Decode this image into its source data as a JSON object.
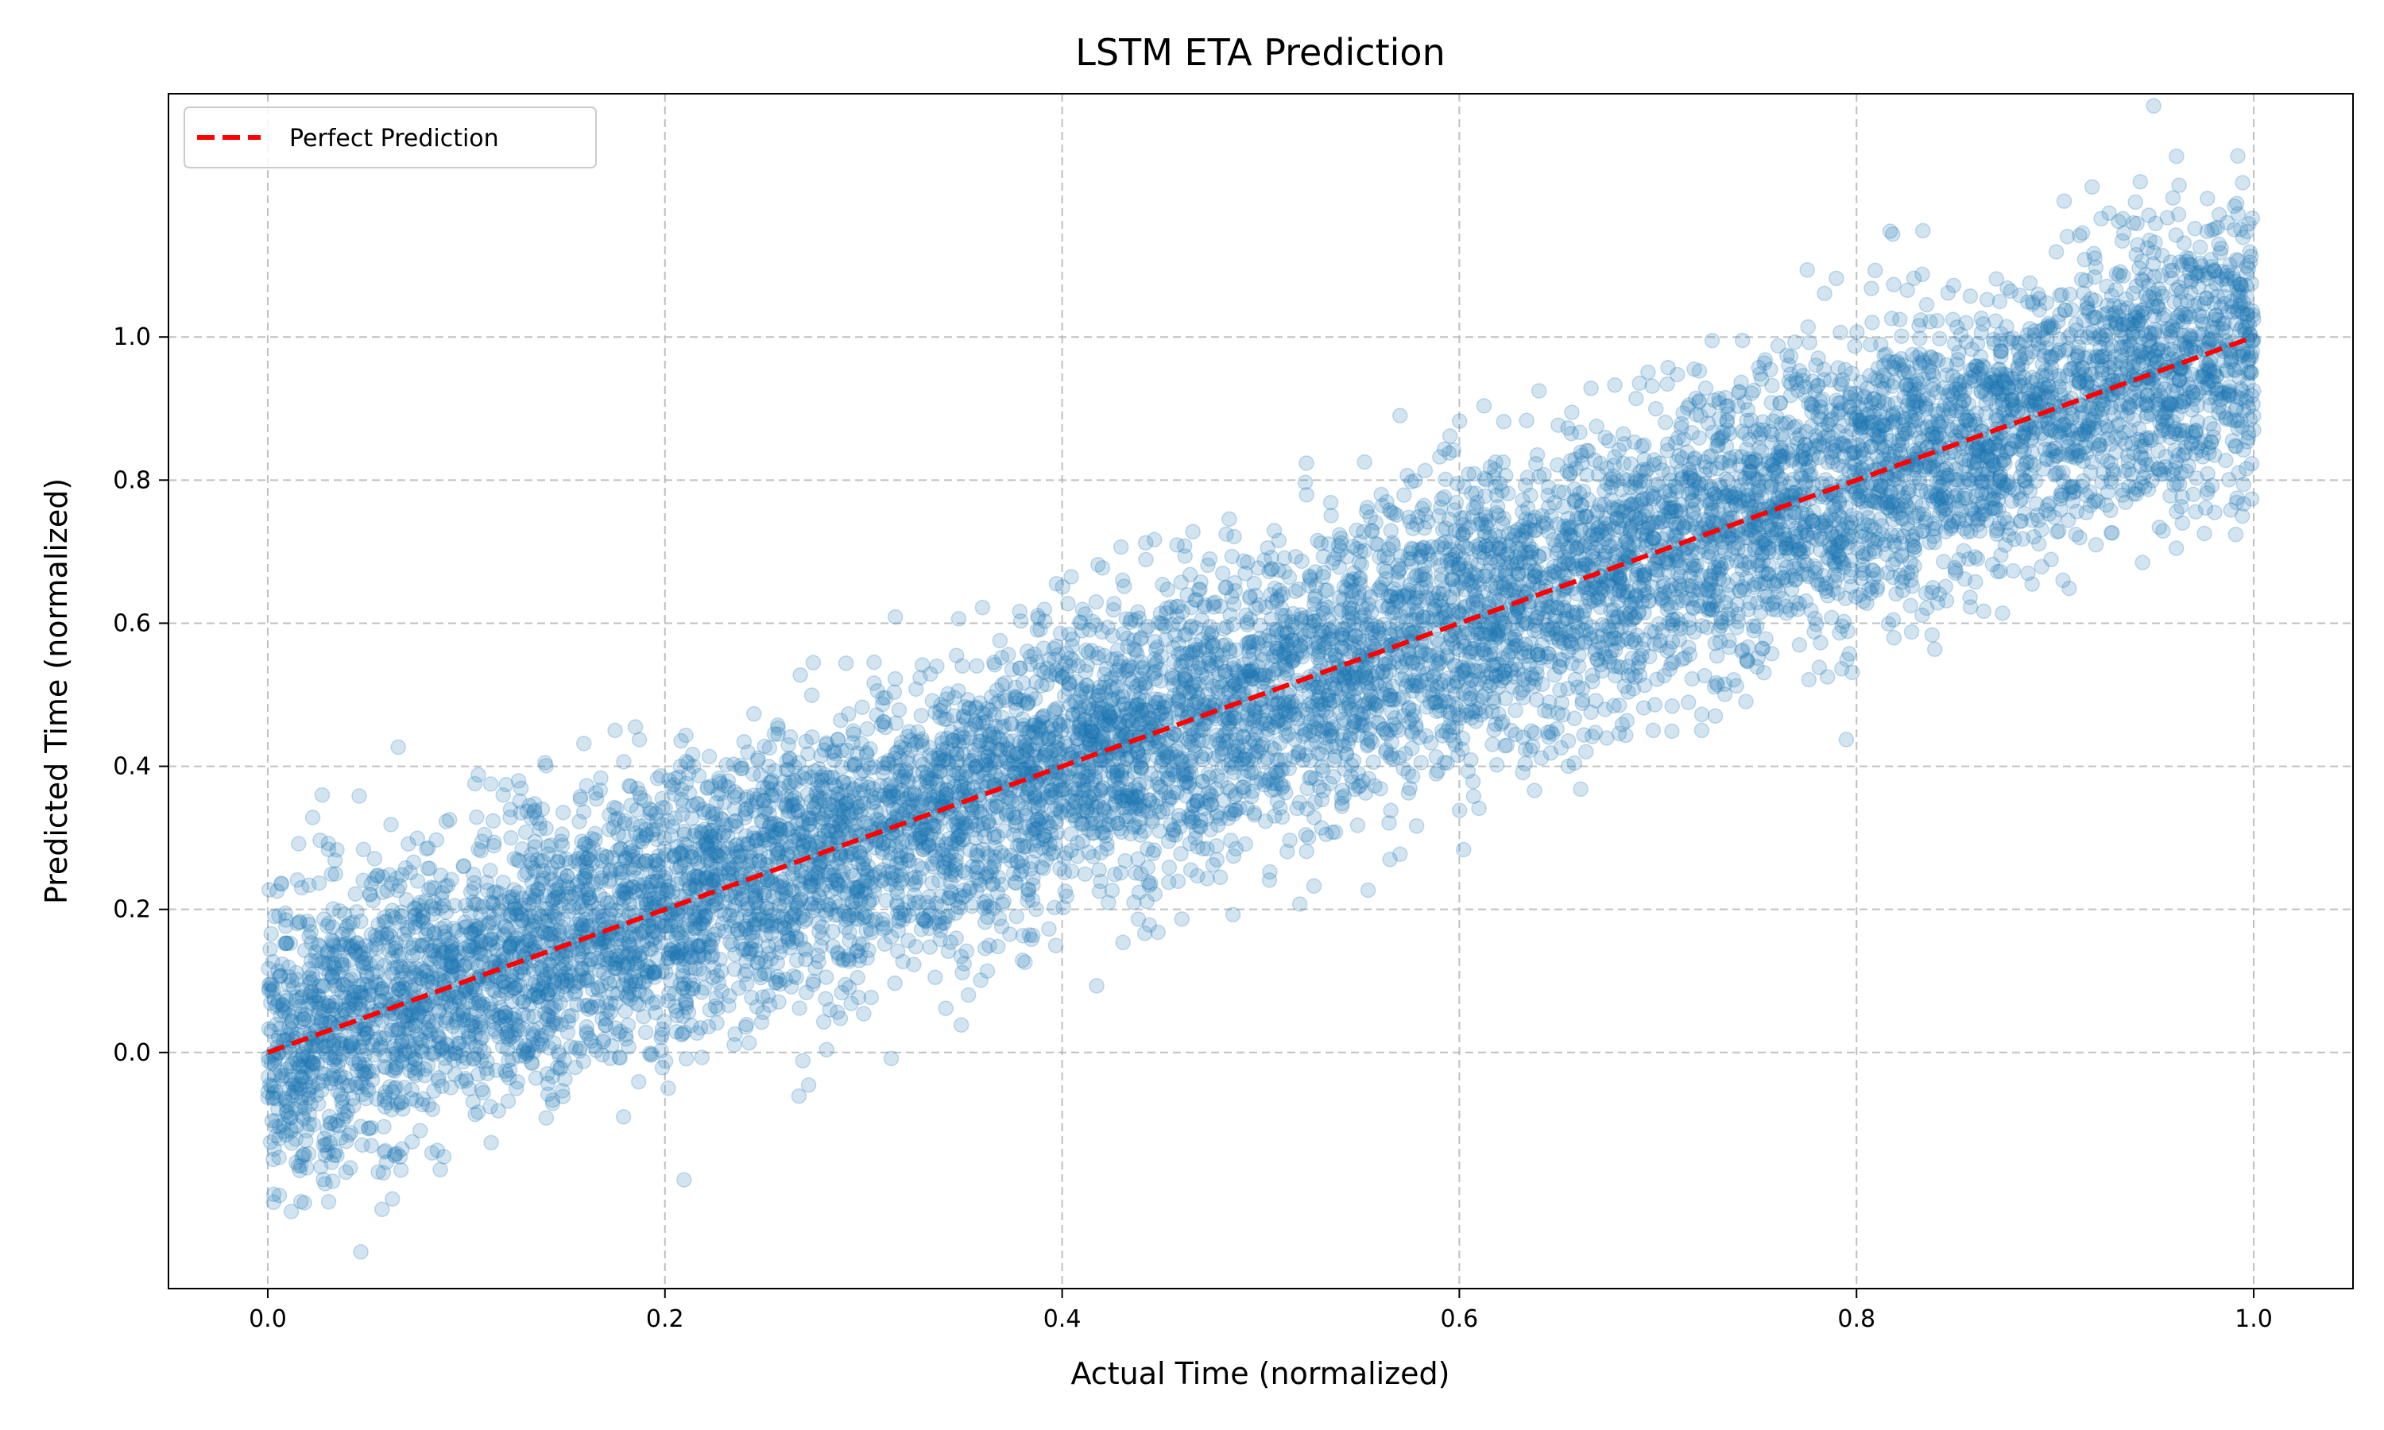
{
  "chart_data": {
    "type": "scatter",
    "title": "LSTM ETA Prediction",
    "xlabel": "Actual Time (normalized)",
    "ylabel": "Predicted Time (normalized)",
    "xlim": [
      -0.05,
      1.05
    ],
    "ylim": [
      -0.33,
      1.34
    ],
    "x_ticks": [
      0.0,
      0.2,
      0.4,
      0.6,
      0.8,
      1.0
    ],
    "x_tick_labels": [
      "0.0",
      "0.2",
      "0.4",
      "0.6",
      "0.8",
      "1.0"
    ],
    "y_ticks": [
      0.0,
      0.2,
      0.4,
      0.6,
      0.8,
      1.0
    ],
    "y_tick_labels": [
      "0.0",
      "0.2",
      "0.4",
      "0.6",
      "0.8",
      "1.0"
    ],
    "grid": true,
    "legend_position": "top-left",
    "scatter_series": {
      "color": "#1f77b4",
      "opacity": 0.2,
      "point_count": 10000,
      "x_range": [
        0.0,
        1.0
      ],
      "relation": "y ≈ x with noise",
      "noise_std": 0.1
    },
    "reference_line": {
      "name": "Perfect Prediction",
      "color": "#ff0000",
      "style": "dashed",
      "x": [
        0.0,
        1.0
      ],
      "y": [
        0.0,
        1.0
      ]
    }
  }
}
